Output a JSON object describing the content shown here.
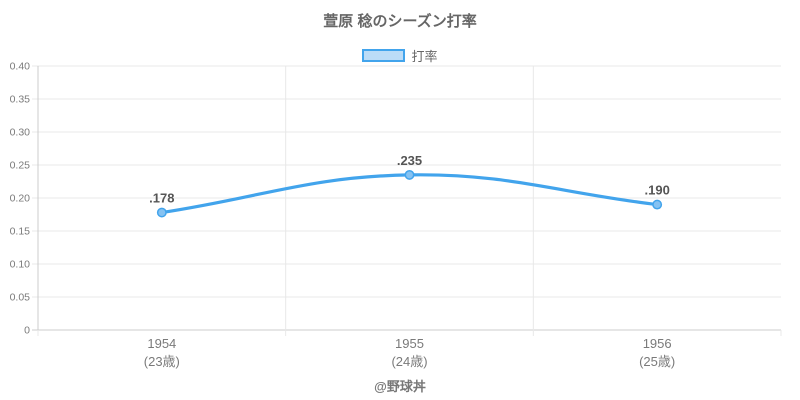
{
  "title": "萱原 稔のシーズン打率",
  "legend": {
    "label": "打率"
  },
  "footer": "@野球丼",
  "colors": {
    "line": "#42a4ec",
    "point_fill": "#85c2f2",
    "legend_fill": "#bcdcf7",
    "grid": "#e8e8e8",
    "axis_line": "#cccccc",
    "tick_text": "#7a7a7a",
    "title_text": "#666666",
    "legend_text": "#666666",
    "value_label": "#555555",
    "footer_text": "#777777"
  },
  "chart_data": {
    "type": "line",
    "title": "萱原 稔のシーズン打率",
    "categories": [
      "1954",
      "1955",
      "1956"
    ],
    "category_sublabels": [
      "(23歳)",
      "(24歳)",
      "(25歳)"
    ],
    "series": [
      {
        "name": "打率",
        "values": [
          0.178,
          0.235,
          0.19
        ],
        "point_labels": [
          ".178",
          ".235",
          ".190"
        ]
      }
    ],
    "xlabel": "",
    "ylabel": "",
    "ylim": [
      0,
      0.4
    ],
    "y_ticks": [
      "0",
      "0.05",
      "0.10",
      "0.15",
      "0.20",
      "0.25",
      "0.30",
      "0.35",
      "0.40"
    ],
    "grid": true,
    "legend_position": "top",
    "line_tension": 0.4
  }
}
